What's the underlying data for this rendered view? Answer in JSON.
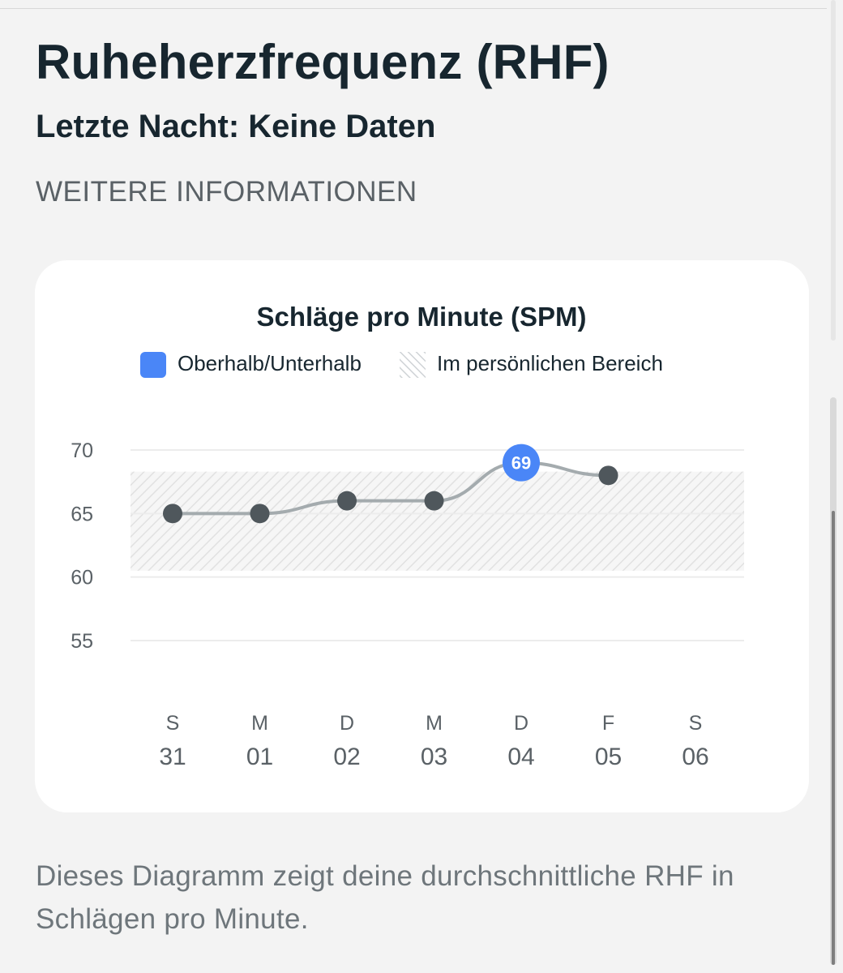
{
  "page": {
    "title": "Ruheherzfrequenz (RHF)",
    "subtitle": "Letzte Nacht: Keine Daten",
    "more_info_label": "WEITERE INFORMATIONEN",
    "footer": "Dieses Diagramm zeigt deine durchschnittliche RHF in Schlägen pro Minute."
  },
  "colors": {
    "highlight": "#4a86f7",
    "point": "#4f575c",
    "line": "#a4abae",
    "text_dark": "#17262f",
    "range_hatch": "#e1e1e1"
  },
  "chart_data": {
    "type": "line",
    "title": "Schläge pro Minute (SPM)",
    "legend": [
      {
        "label": "Oberhalb/Unterhalb",
        "swatch": "solid-blue"
      },
      {
        "label": "Im persönlichen Bereich",
        "swatch": "hatched-gray"
      }
    ],
    "legend_position": "top",
    "y_ticks": [
      70,
      65,
      60,
      55
    ],
    "ylim": [
      55,
      70
    ],
    "personal_range": [
      60.5,
      68.3
    ],
    "x_days": [
      "S",
      "M",
      "D",
      "M",
      "D",
      "F",
      "S"
    ],
    "x_dates": [
      "31",
      "01",
      "02",
      "03",
      "04",
      "05",
      "06"
    ],
    "values": [
      65,
      65,
      66,
      66,
      69,
      68,
      null
    ],
    "highlighted": [
      false,
      false,
      false,
      false,
      true,
      false,
      false
    ],
    "highlight_label": "69",
    "grid": true
  }
}
